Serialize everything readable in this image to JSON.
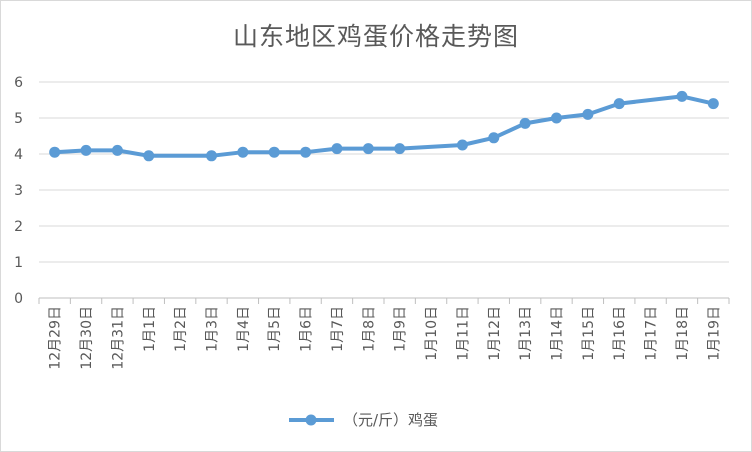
{
  "chart_data": {
    "type": "line",
    "title": "山东地区鸡蛋价格走势图",
    "categories": [
      "12月29日",
      "12月30日",
      "12月31日",
      "1月1日",
      "1月2日",
      "1月3日",
      "1月4日",
      "1月5日",
      "1月6日",
      "1月7日",
      "1月8日",
      "1月9日",
      "1月10日",
      "1月11日",
      "1月12日",
      "1月13日",
      "1月14日",
      "1月15日",
      "1月16日",
      "1月17日",
      "1月18日",
      "1月19日"
    ],
    "series": [
      {
        "name": "（元/斤）鸡蛋",
        "color": "#5b9bd5",
        "values": [
          4.05,
          4.1,
          4.1,
          3.95,
          null,
          3.95,
          4.05,
          4.05,
          4.05,
          4.15,
          4.15,
          4.15,
          null,
          4.25,
          4.45,
          4.85,
          5.0,
          5.1,
          5.4,
          null,
          5.6,
          5.4
        ]
      }
    ],
    "ylim": [
      0,
      6
    ],
    "yticks": [
      0,
      1,
      2,
      3,
      4,
      5,
      6
    ],
    "grid": true,
    "legend": "bottom"
  }
}
